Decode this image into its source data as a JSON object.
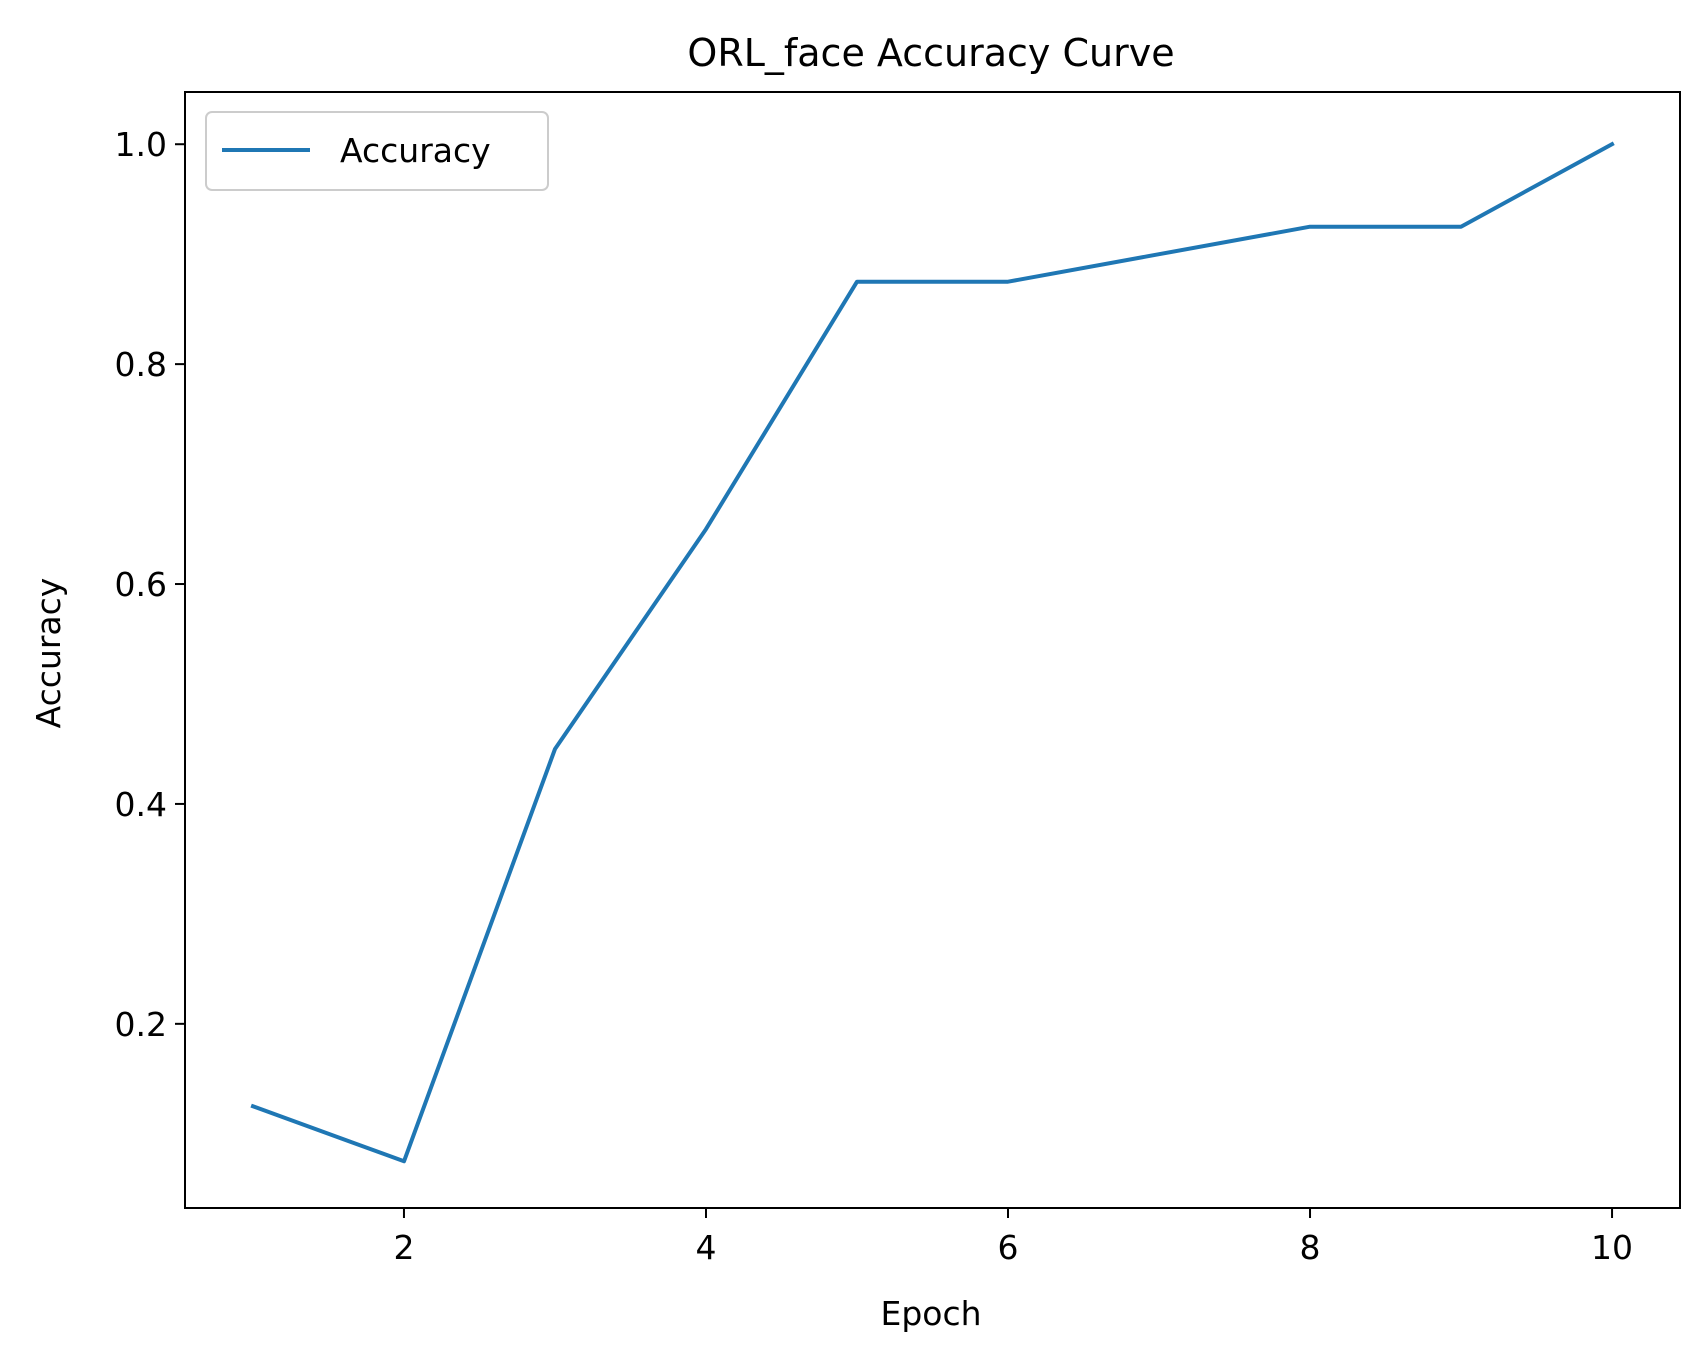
{
  "chart_data": {
    "type": "line",
    "title": "ORL_face Accuracy Curve",
    "xlabel": "Epoch",
    "ylabel": "Accuracy",
    "xlim": [
      0.55,
      10.45
    ],
    "ylim": [
      0.0325,
      1.0475
    ],
    "xticks": [
      2,
      4,
      6,
      8,
      10
    ],
    "xtick_labels": [
      "2",
      "4",
      "6",
      "8",
      "10"
    ],
    "yticks": [
      0.2,
      0.4,
      0.6,
      0.8,
      1.0
    ],
    "ytick_labels": [
      "0.2",
      "0.4",
      "0.6",
      "0.8",
      "1.0"
    ],
    "grid": false,
    "legend": {
      "position": "upper-left"
    },
    "x": [
      1,
      2,
      3,
      4,
      5,
      6,
      7,
      8,
      9,
      10
    ],
    "series": [
      {
        "name": "Accuracy",
        "color": "#1f77b4",
        "values": [
          0.125,
          0.075,
          0.45,
          0.65,
          0.875,
          0.875,
          0.9,
          0.925,
          0.925,
          1.0
        ]
      }
    ]
  }
}
